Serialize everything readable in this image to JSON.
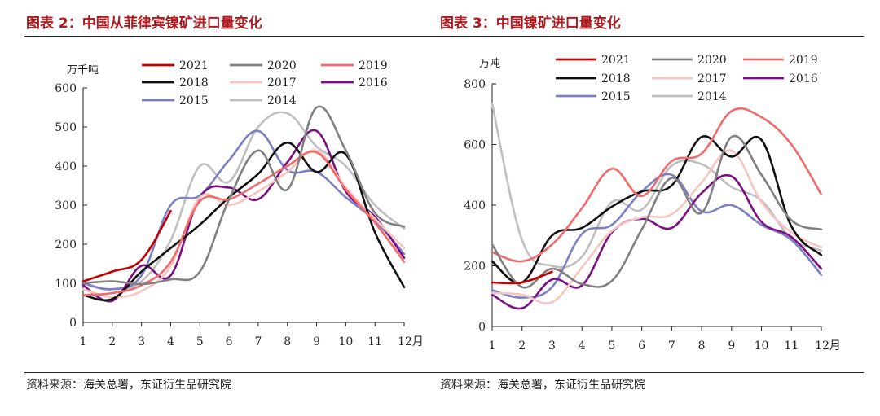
{
  "panels": [
    {
      "title": "图表 2：中国从菲律宾镍矿进口量变化",
      "source": "资料来源：海关总署，东证衍生品研究院"
    },
    {
      "title": "图表 3：中国镍矿进口量变化",
      "source": "资料来源：海关总署，东证衍生品研究院"
    }
  ],
  "chart_data": [
    {
      "type": "line",
      "unit": "万千吨",
      "x_suffix": "月",
      "x": [
        1,
        2,
        3,
        4,
        5,
        6,
        7,
        8,
        9,
        10,
        11,
        12
      ],
      "xlim": [
        1,
        12
      ],
      "ylim": [
        0,
        600
      ],
      "yticks": [
        0,
        100,
        200,
        300,
        400,
        500,
        600
      ],
      "legend_position": "top",
      "series": [
        {
          "name": "2021",
          "color": "#c00000",
          "values": [
            105,
            130,
            160,
            285,
            null,
            null,
            null,
            null,
            null,
            null,
            null,
            null
          ]
        },
        {
          "name": "2020",
          "color": "#808080",
          "values": [
            100,
            105,
            98,
            110,
            130,
            315,
            440,
            340,
            550,
            440,
            280,
            245
          ]
        },
        {
          "name": "2019",
          "color": "#f26b6b",
          "values": [
            70,
            75,
            95,
            155,
            310,
            315,
            355,
            400,
            435,
            340,
            255,
            155
          ]
        },
        {
          "name": "2018",
          "color": "#111111",
          "values": [
            70,
            60,
            130,
            190,
            250,
            320,
            380,
            460,
            385,
            430,
            230,
            90
          ]
        },
        {
          "name": "2017",
          "color": "#f7c5c0",
          "values": [
            85,
            65,
            80,
            145,
            320,
            300,
            335,
            385,
            440,
            345,
            265,
            190
          ]
        },
        {
          "name": "2016",
          "color": "#7b0f83",
          "values": [
            95,
            55,
            145,
            120,
            320,
            345,
            315,
            410,
            490,
            335,
            270,
            165
          ]
        },
        {
          "name": "2015",
          "color": "#7b7fc6",
          "values": [
            100,
            85,
            120,
            300,
            325,
            415,
            490,
            390,
            385,
            320,
            260,
            175
          ]
        },
        {
          "name": "2014",
          "color": "#bfbfbf",
          "values": [
            100,
            85,
            105,
            210,
            400,
            360,
            500,
            535,
            450,
            400,
            300,
            240
          ]
        }
      ]
    },
    {
      "type": "line",
      "unit": "万吨",
      "x_suffix": "月",
      "x": [
        1,
        2,
        3,
        4,
        5,
        6,
        7,
        8,
        9,
        10,
        11,
        12
      ],
      "xlim": [
        1,
        12
      ],
      "ylim": [
        0,
        800
      ],
      "yticks": [
        0,
        200,
        400,
        600,
        800
      ],
      "legend_position": "top",
      "series": [
        {
          "name": "2021",
          "color": "#c00000",
          "values": [
            145,
            145,
            180,
            null,
            null,
            null,
            null,
            null,
            null,
            null,
            null,
            null
          ]
        },
        {
          "name": "2020",
          "color": "#808080",
          "values": [
            270,
            130,
            190,
            140,
            150,
            320,
            490,
            375,
            625,
            500,
            350,
            320
          ]
        },
        {
          "name": "2019",
          "color": "#f26b6b",
          "values": [
            245,
            215,
            270,
            390,
            520,
            430,
            545,
            570,
            710,
            690,
            600,
            435
          ]
        },
        {
          "name": "2018",
          "color": "#111111",
          "values": [
            215,
            145,
            300,
            325,
            395,
            445,
            465,
            625,
            560,
            615,
            330,
            235
          ]
        },
        {
          "name": "2017",
          "color": "#f7c5c0",
          "values": [
            110,
            105,
            80,
            195,
            315,
            360,
            370,
            475,
            580,
            410,
            310,
            260
          ]
        },
        {
          "name": "2016",
          "color": "#7b0f83",
          "values": [
            105,
            60,
            155,
            135,
            310,
            355,
            325,
            440,
            495,
            345,
            295,
            190
          ]
        },
        {
          "name": "2015",
          "color": "#7b7fc6",
          "values": [
            120,
            95,
            130,
            305,
            335,
            445,
            500,
            380,
            400,
            335,
            285,
            170
          ]
        },
        {
          "name": "2014",
          "color": "#bfbfbf",
          "values": [
            735,
            285,
            200,
            230,
            410,
            385,
            530,
            535,
            460,
            415,
            290,
            250
          ]
        }
      ]
    }
  ]
}
